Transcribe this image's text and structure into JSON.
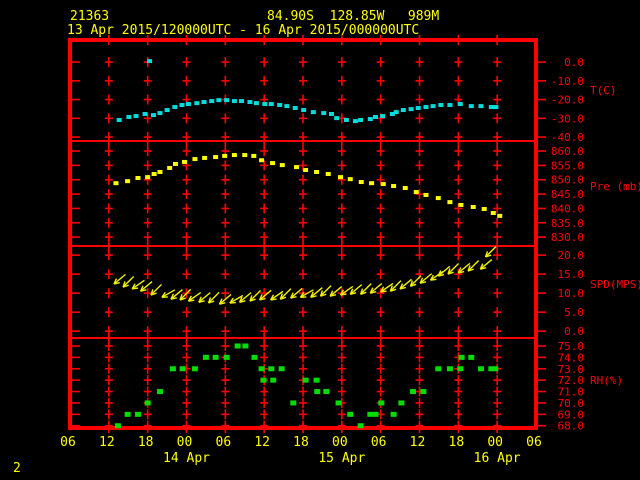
{
  "header": {
    "station_id": "21363",
    "location": "84.90S  128.85W   989M",
    "period": "13 Apr 2015/120000UTC - 16 Apr 2015/000000UTC"
  },
  "footer": {
    "page_number": "2"
  },
  "colors": {
    "background": "#000000",
    "frame": "#ff0000",
    "axis_text": "#ff0000",
    "time_text": "#ffff00",
    "temperature": "#00dddd",
    "pressure": "#ffff00",
    "wind": "#f2f200",
    "humidity": "#00dd00"
  },
  "chart_data": {
    "type": "scatter",
    "subtype": "aws-meteogram-4panel",
    "time_axis": {
      "xlim_hours": [
        0,
        72
      ],
      "tick_interval_hours": 6,
      "tick_labels": [
        "06",
        "12",
        "18",
        "00",
        "06",
        "12",
        "18",
        "00",
        "06",
        "12",
        "18",
        "00",
        "06"
      ],
      "date_labels": [
        {
          "label": "14 Apr",
          "hour": 18
        },
        {
          "label": "15 Apr",
          "hour": 42
        },
        {
          "label": "16 Apr",
          "hour": 66
        }
      ]
    },
    "panels": [
      {
        "id": "temperature",
        "unit_label": "T(C)",
        "marker": "square",
        "color_key": "temperature",
        "tick_values": [
          0,
          -10,
          -20,
          -30,
          -40
        ],
        "tick_labels": [
          "0.0",
          "-10.0",
          "-20.0",
          "-30.0",
          "-40.0"
        ],
        "ylim": [
          -42.1,
          10.7
        ],
        "points": [
          [
            7.6,
            -30.9
          ],
          [
            9.1,
            -29.3
          ],
          [
            10.2,
            -28.8
          ],
          [
            11.6,
            -27.7
          ],
          [
            12.3,
            0.5
          ],
          [
            12.9,
            -28.3
          ],
          [
            13.9,
            -27.2
          ],
          [
            15.0,
            -25.6
          ],
          [
            16.2,
            -24.0
          ],
          [
            17.3,
            -22.9
          ],
          [
            18.3,
            -22.4
          ],
          [
            19.6,
            -21.9
          ],
          [
            20.7,
            -21.3
          ],
          [
            21.9,
            -20.8
          ],
          [
            23.0,
            -20.3
          ],
          [
            24.2,
            -20.3
          ],
          [
            25.4,
            -20.8
          ],
          [
            26.5,
            -20.8
          ],
          [
            27.8,
            -21.3
          ],
          [
            28.8,
            -21.9
          ],
          [
            30.1,
            -22.4
          ],
          [
            31.1,
            -22.4
          ],
          [
            32.4,
            -22.9
          ],
          [
            33.5,
            -23.5
          ],
          [
            34.8,
            -24.5
          ],
          [
            36.1,
            -25.6
          ],
          [
            37.6,
            -26.7
          ],
          [
            39.2,
            -27.2
          ],
          [
            40.4,
            -27.7
          ],
          [
            41.2,
            -29.9
          ],
          [
            42.7,
            -30.9
          ],
          [
            44.1,
            -31.5
          ],
          [
            44.9,
            -30.9
          ],
          [
            46.4,
            -30.4
          ],
          [
            47.2,
            -29.3
          ],
          [
            48.3,
            -28.8
          ],
          [
            49.8,
            -27.7
          ],
          [
            50.4,
            -26.7
          ],
          [
            51.5,
            -25.6
          ],
          [
            52.7,
            -25.1
          ],
          [
            53.8,
            -24.5
          ],
          [
            55.0,
            -24.0
          ],
          [
            56.1,
            -23.5
          ],
          [
            57.3,
            -22.9
          ],
          [
            58.7,
            -22.9
          ],
          [
            60.3,
            -22.4
          ],
          [
            62.0,
            -23.5
          ],
          [
            63.5,
            -23.5
          ],
          [
            65.1,
            -24.0
          ],
          [
            65.8,
            -24.0
          ]
        ]
      },
      {
        "id": "pressure",
        "unit_label": "Pre (mb)",
        "marker": "square",
        "color_key": "pressure",
        "tick_values": [
          860,
          855,
          850,
          845,
          840,
          835,
          830
        ],
        "tick_labels": [
          "860.0",
          "855.0",
          "850.0",
          "845.0",
          "840.0",
          "835.0",
          "830.0"
        ],
        "ylim": [
          826.9,
          863.5
        ],
        "points": [
          [
            7.1,
            848.8
          ],
          [
            8.9,
            849.5
          ],
          [
            10.5,
            850.6
          ],
          [
            12.0,
            850.9
          ],
          [
            13.0,
            852.0
          ],
          [
            13.9,
            852.7
          ],
          [
            15.4,
            854.1
          ],
          [
            16.3,
            855.5
          ],
          [
            17.7,
            856.2
          ],
          [
            19.3,
            857.2
          ],
          [
            20.8,
            857.6
          ],
          [
            22.5,
            857.9
          ],
          [
            23.9,
            858.3
          ],
          [
            25.4,
            858.6
          ],
          [
            27.0,
            858.6
          ],
          [
            28.4,
            858.3
          ],
          [
            29.6,
            856.8
          ],
          [
            31.3,
            855.8
          ],
          [
            32.8,
            855.1
          ],
          [
            35.0,
            854.4
          ],
          [
            36.4,
            853.4
          ],
          [
            38.1,
            852.7
          ],
          [
            39.9,
            852.0
          ],
          [
            41.8,
            850.9
          ],
          [
            43.3,
            850.2
          ],
          [
            45.0,
            849.2
          ],
          [
            46.6,
            848.8
          ],
          [
            48.4,
            848.5
          ],
          [
            50.0,
            847.8
          ],
          [
            51.8,
            847.1
          ],
          [
            53.5,
            845.7
          ],
          [
            55.0,
            844.7
          ],
          [
            56.9,
            843.6
          ],
          [
            58.7,
            842.2
          ],
          [
            60.4,
            841.2
          ],
          [
            62.3,
            840.5
          ],
          [
            64.0,
            839.8
          ],
          [
            65.4,
            838.4
          ],
          [
            66.4,
            837.4
          ]
        ]
      },
      {
        "id": "wind-speed",
        "unit_label": "SPD(MPS)",
        "marker": "arrow",
        "color_key": "wind",
        "tick_values": [
          20,
          15,
          10,
          5,
          0
        ],
        "tick_labels": [
          "20.0",
          "15.0",
          "10.0",
          "5.0",
          "0.0"
        ],
        "ylim": [
          -1.8,
          22.4
        ],
        "points": [
          [
            6.8,
            12.4,
            140
          ],
          [
            8.2,
            11.6,
            135
          ],
          [
            9.6,
            11.1,
            145
          ],
          [
            10.9,
            10.5,
            140
          ],
          [
            12.5,
            9.5,
            135
          ],
          [
            14.2,
            8.9,
            150
          ],
          [
            15.6,
            8.4,
            140
          ],
          [
            17.0,
            8.2,
            135
          ],
          [
            18.3,
            7.9,
            145
          ],
          [
            19.9,
            7.6,
            140
          ],
          [
            21.4,
            7.4,
            135
          ],
          [
            23.1,
            7.1,
            140
          ],
          [
            24.7,
            7.4,
            150
          ],
          [
            26.2,
            7.6,
            140
          ],
          [
            27.8,
            7.9,
            135
          ],
          [
            29.3,
            8.2,
            140
          ],
          [
            31.0,
            8.2,
            145
          ],
          [
            32.5,
            8.4,
            135
          ],
          [
            34.1,
            8.7,
            140
          ],
          [
            35.6,
            8.9,
            150
          ],
          [
            37.2,
            8.9,
            140
          ],
          [
            38.7,
            9.2,
            135
          ],
          [
            40.2,
            9.2,
            140
          ],
          [
            41.8,
            9.5,
            145
          ],
          [
            43.3,
            9.7,
            140
          ],
          [
            44.9,
            9.7,
            135
          ],
          [
            46.4,
            10.0,
            140
          ],
          [
            48.0,
            10.3,
            145
          ],
          [
            49.5,
            10.5,
            135
          ],
          [
            51.0,
            11.1,
            140
          ],
          [
            52.6,
            11.8,
            135
          ],
          [
            54.1,
            12.6,
            140
          ],
          [
            55.7,
            13.4,
            145
          ],
          [
            56.9,
            14.5,
            140
          ],
          [
            58.4,
            15.0,
            135
          ],
          [
            60.0,
            15.3,
            140
          ],
          [
            61.5,
            15.8,
            135
          ],
          [
            63.4,
            16.3,
            140
          ],
          [
            64.2,
            19.5,
            135
          ]
        ]
      },
      {
        "id": "humidity",
        "unit_label": "RH(%)",
        "marker": "square",
        "color_key": "humidity",
        "tick_values": [
          75,
          74,
          73,
          72,
          71,
          70,
          69,
          68
        ],
        "tick_labels": [
          "75.0",
          "74.0",
          "73.0",
          "72.0",
          "71.0",
          "70.0",
          "69.0",
          "68.0"
        ],
        "ylim": [
          67.8,
          75.7
        ],
        "points": [
          [
            7.4,
            68
          ],
          [
            8.9,
            69
          ],
          [
            10.5,
            69
          ],
          [
            12.0,
            70
          ],
          [
            13.9,
            71
          ],
          [
            15.9,
            73
          ],
          [
            17.4,
            73
          ],
          [
            19.3,
            73
          ],
          [
            21.0,
            74
          ],
          [
            22.5,
            74
          ],
          [
            24.2,
            74
          ],
          [
            25.9,
            75
          ],
          [
            27.1,
            75
          ],
          [
            28.5,
            74
          ],
          [
            29.6,
            73
          ],
          [
            29.9,
            72
          ],
          [
            31.1,
            73
          ],
          [
            31.4,
            72
          ],
          [
            32.7,
            73
          ],
          [
            34.5,
            70
          ],
          [
            36.4,
            72
          ],
          [
            38.1,
            72
          ],
          [
            38.2,
            71
          ],
          [
            39.6,
            71
          ],
          [
            41.5,
            70
          ],
          [
            43.3,
            69
          ],
          [
            44.9,
            68
          ],
          [
            46.4,
            69
          ],
          [
            47.2,
            69
          ],
          [
            48.1,
            70
          ],
          [
            50.0,
            69
          ],
          [
            51.2,
            70
          ],
          [
            53.0,
            71
          ],
          [
            54.6,
            71
          ],
          [
            56.9,
            73
          ],
          [
            58.7,
            73
          ],
          [
            60.3,
            73
          ],
          [
            60.5,
            74
          ],
          [
            62.0,
            74
          ],
          [
            63.5,
            73
          ],
          [
            65.1,
            73
          ],
          [
            65.7,
            73
          ]
        ]
      }
    ]
  }
}
